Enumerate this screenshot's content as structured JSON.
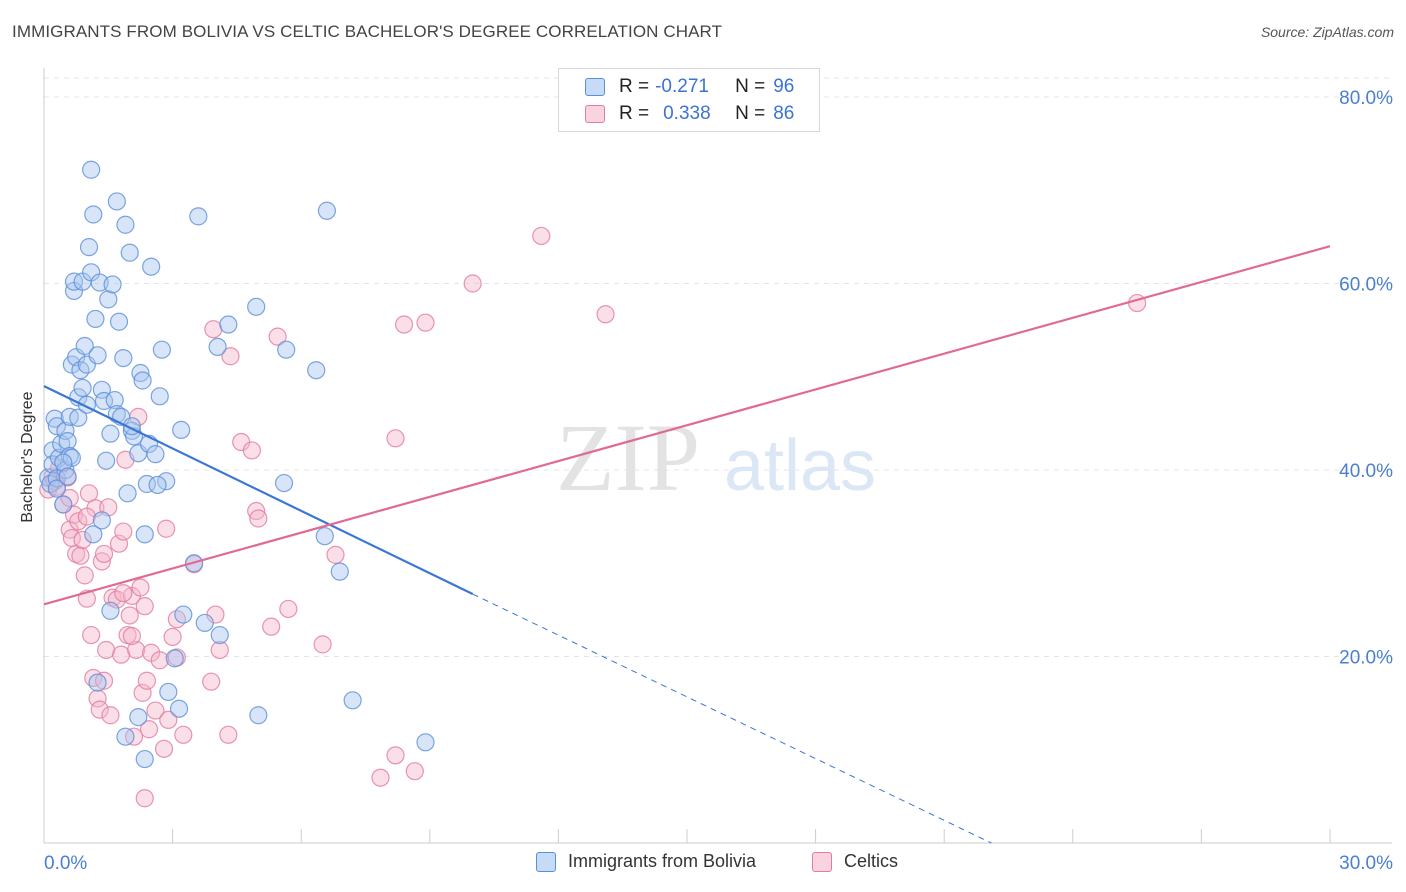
{
  "title": "IMMIGRANTS FROM BOLIVIA VS CELTIC BACHELOR'S DEGREE CORRELATION CHART",
  "source": "Source: ZipAtlas.com",
  "watermark": {
    "zip": "ZIP",
    "atlas": "atlas"
  },
  "legend": {
    "r_label": "R =",
    "n_label": "N =",
    "rows": [
      {
        "r": "-0.271",
        "n": "96",
        "color": "#a8c6f0"
      },
      {
        "r": "0.338",
        "n": "86",
        "color": "#f5b8cb"
      }
    ]
  },
  "colors": {
    "blue_fill": "#a8c6f0",
    "blue_stroke": "#5b8fd8",
    "blue_line": "#3a76d4",
    "pink_fill": "#f5b8cb",
    "pink_stroke": "#e27b9e",
    "pink_line": "#e06a93",
    "tick_text": "#4a7fd0"
  },
  "chart_data": {
    "type": "scatter",
    "title": "IMMIGRANTS FROM BOLIVIA VS CELTIC BACHELOR'S DEGREE CORRELATION CHART",
    "xlabel": "",
    "ylabel": "Bachelor's Degree",
    "xlim": [
      0,
      30
    ],
    "ylim": [
      0,
      80
    ],
    "x_tick_labels": [
      "0.0%",
      "30.0%"
    ],
    "y_ticks": [
      20,
      40,
      60,
      80
    ],
    "y_tick_labels": [
      "20.0%",
      "40.0%",
      "60.0%",
      "80.0%"
    ],
    "grid": true,
    "legend_position": "top-center",
    "series": [
      {
        "name": "Immigrants from Bolivia",
        "r": -0.271,
        "n": 96,
        "trend": {
          "x": [
            0,
            10
          ],
          "y": [
            49.0,
            26.7
          ],
          "dashed_extension_to": [
            22.1,
            0
          ]
        },
        "points": [
          [
            0.1,
            39.2
          ],
          [
            0.15,
            38.5
          ],
          [
            0.2,
            42.1
          ],
          [
            0.2,
            40.6
          ],
          [
            0.25,
            45.5
          ],
          [
            0.3,
            44.7
          ],
          [
            0.3,
            39.1
          ],
          [
            0.35,
            41.3
          ],
          [
            0.4,
            42.8
          ],
          [
            0.45,
            36.3
          ],
          [
            0.5,
            40.0
          ],
          [
            0.5,
            44.2
          ],
          [
            0.55,
            43.1
          ],
          [
            0.6,
            45.7
          ],
          [
            0.6,
            41.5
          ],
          [
            0.65,
            51.3
          ],
          [
            0.7,
            59.2
          ],
          [
            0.7,
            60.2
          ],
          [
            0.75,
            52.1
          ],
          [
            0.8,
            47.8
          ],
          [
            0.8,
            45.6
          ],
          [
            0.85,
            50.7
          ],
          [
            0.9,
            48.8
          ],
          [
            0.9,
            60.2
          ],
          [
            0.95,
            53.3
          ],
          [
            1.0,
            51.3
          ],
          [
            1.0,
            47.0
          ],
          [
            1.05,
            63.9
          ],
          [
            1.1,
            61.2
          ],
          [
            1.15,
            67.4
          ],
          [
            1.2,
            56.2
          ],
          [
            1.25,
            52.3
          ],
          [
            1.3,
            60.1
          ],
          [
            1.35,
            48.6
          ],
          [
            1.4,
            47.4
          ],
          [
            1.45,
            41.0
          ],
          [
            1.5,
            58.3
          ],
          [
            1.55,
            43.9
          ],
          [
            1.6,
            59.9
          ],
          [
            1.65,
            47.5
          ],
          [
            1.7,
            46.0
          ],
          [
            1.75,
            55.9
          ],
          [
            1.8,
            45.7
          ],
          [
            1.85,
            52.0
          ],
          [
            1.9,
            66.3
          ],
          [
            1.95,
            37.5
          ],
          [
            2.0,
            63.3
          ],
          [
            2.05,
            44.2
          ],
          [
            2.1,
            43.6
          ],
          [
            2.2,
            41.8
          ],
          [
            2.25,
            50.4
          ],
          [
            2.3,
            49.6
          ],
          [
            2.35,
            33.1
          ],
          [
            2.4,
            38.5
          ],
          [
            2.45,
            42.8
          ],
          [
            2.5,
            61.8
          ],
          [
            2.6,
            41.7
          ],
          [
            2.7,
            47.9
          ],
          [
            2.75,
            52.9
          ],
          [
            2.85,
            38.8
          ],
          [
            3.2,
            44.3
          ],
          [
            3.5,
            30.0
          ],
          [
            3.6,
            67.2
          ],
          [
            3.75,
            23.6
          ],
          [
            4.05,
            53.2
          ],
          [
            4.1,
            22.3
          ],
          [
            4.3,
            55.6
          ],
          [
            4.95,
            57.5
          ],
          [
            5.0,
            13.7
          ],
          [
            5.65,
            52.9
          ],
          [
            5.6,
            38.6
          ],
          [
            6.35,
            50.7
          ],
          [
            6.55,
            32.9
          ],
          [
            6.6,
            67.8
          ],
          [
            6.9,
            29.1
          ],
          [
            7.2,
            15.3
          ],
          [
            8.9,
            10.8
          ],
          [
            0.3,
            38.0
          ],
          [
            1.15,
            33.1
          ],
          [
            1.35,
            34.6
          ],
          [
            1.55,
            24.9
          ],
          [
            0.65,
            41.3
          ],
          [
            1.25,
            17.2
          ],
          [
            1.9,
            11.4
          ],
          [
            2.2,
            13.5
          ],
          [
            2.35,
            9.0
          ],
          [
            2.9,
            16.2
          ],
          [
            3.05,
            19.8
          ],
          [
            3.15,
            14.4
          ],
          [
            3.25,
            24.5
          ],
          [
            1.1,
            72.2
          ],
          [
            1.7,
            68.8
          ],
          [
            0.45,
            40.8
          ],
          [
            0.55,
            39.3
          ],
          [
            2.05,
            44.7
          ],
          [
            2.65,
            38.4
          ]
        ]
      },
      {
        "name": "Celtics",
        "r": 0.338,
        "n": 86,
        "trend": {
          "x": [
            0,
            30
          ],
          "y": [
            25.6,
            64.0
          ]
        },
        "points": [
          [
            0.1,
            37.9
          ],
          [
            0.2,
            39.3
          ],
          [
            0.3,
            38.2
          ],
          [
            0.35,
            40.2
          ],
          [
            0.45,
            36.3
          ],
          [
            0.55,
            39.2
          ],
          [
            0.6,
            33.6
          ],
          [
            0.65,
            32.7
          ],
          [
            0.7,
            35.2
          ],
          [
            0.75,
            31.0
          ],
          [
            0.8,
            34.5
          ],
          [
            0.85,
            30.8
          ],
          [
            0.9,
            32.5
          ],
          [
            0.95,
            28.7
          ],
          [
            1.0,
            26.2
          ],
          [
            1.05,
            37.5
          ],
          [
            1.1,
            22.3
          ],
          [
            1.15,
            17.7
          ],
          [
            1.2,
            35.9
          ],
          [
            1.25,
            15.5
          ],
          [
            1.3,
            14.3
          ],
          [
            1.35,
            30.2
          ],
          [
            1.4,
            17.4
          ],
          [
            1.45,
            20.7
          ],
          [
            1.5,
            36.0
          ],
          [
            1.55,
            13.7
          ],
          [
            1.6,
            26.3
          ],
          [
            1.7,
            26.1
          ],
          [
            1.75,
            32.1
          ],
          [
            1.8,
            20.2
          ],
          [
            1.85,
            33.4
          ],
          [
            1.9,
            41.1
          ],
          [
            1.95,
            22.3
          ],
          [
            2.0,
            24.4
          ],
          [
            2.05,
            26.5
          ],
          [
            2.1,
            11.4
          ],
          [
            2.15,
            20.7
          ],
          [
            2.2,
            45.7
          ],
          [
            2.25,
            27.4
          ],
          [
            2.3,
            16.1
          ],
          [
            2.35,
            25.4
          ],
          [
            2.4,
            17.4
          ],
          [
            2.45,
            12.2
          ],
          [
            2.5,
            20.4
          ],
          [
            2.6,
            14.2
          ],
          [
            2.7,
            19.6
          ],
          [
            2.8,
            10.1
          ],
          [
            2.85,
            33.7
          ],
          [
            2.9,
            13.2
          ],
          [
            3.0,
            22.1
          ],
          [
            3.1,
            24.0
          ],
          [
            3.25,
            11.6
          ],
          [
            3.5,
            29.9
          ],
          [
            3.9,
            17.3
          ],
          [
            3.95,
            55.1
          ],
          [
            4.0,
            24.5
          ],
          [
            4.1,
            20.7
          ],
          [
            4.3,
            11.6
          ],
          [
            4.35,
            52.2
          ],
          [
            4.6,
            43.0
          ],
          [
            4.85,
            42.1
          ],
          [
            4.95,
            35.6
          ],
          [
            5.0,
            34.8
          ],
          [
            5.3,
            23.2
          ],
          [
            5.45,
            54.3
          ],
          [
            5.7,
            25.1
          ],
          [
            6.5,
            21.3
          ],
          [
            6.8,
            30.9
          ],
          [
            7.85,
            7.0
          ],
          [
            8.2,
            43.4
          ],
          [
            8.2,
            9.4
          ],
          [
            8.4,
            55.6
          ],
          [
            8.65,
            7.7
          ],
          [
            8.9,
            55.8
          ],
          [
            10.0,
            60.0
          ],
          [
            11.6,
            65.1
          ],
          [
            13.1,
            56.7
          ],
          [
            25.5,
            57.9
          ],
          [
            0.25,
            38.8
          ],
          [
            0.6,
            37.0
          ],
          [
            1.0,
            35.0
          ],
          [
            1.4,
            31.0
          ],
          [
            2.35,
            4.8
          ],
          [
            3.1,
            19.9
          ],
          [
            2.05,
            22.2
          ],
          [
            1.85,
            26.8
          ]
        ]
      }
    ]
  },
  "bottom_legend": [
    {
      "label": "Immigrants from Bolivia"
    },
    {
      "label": "Celtics"
    }
  ]
}
